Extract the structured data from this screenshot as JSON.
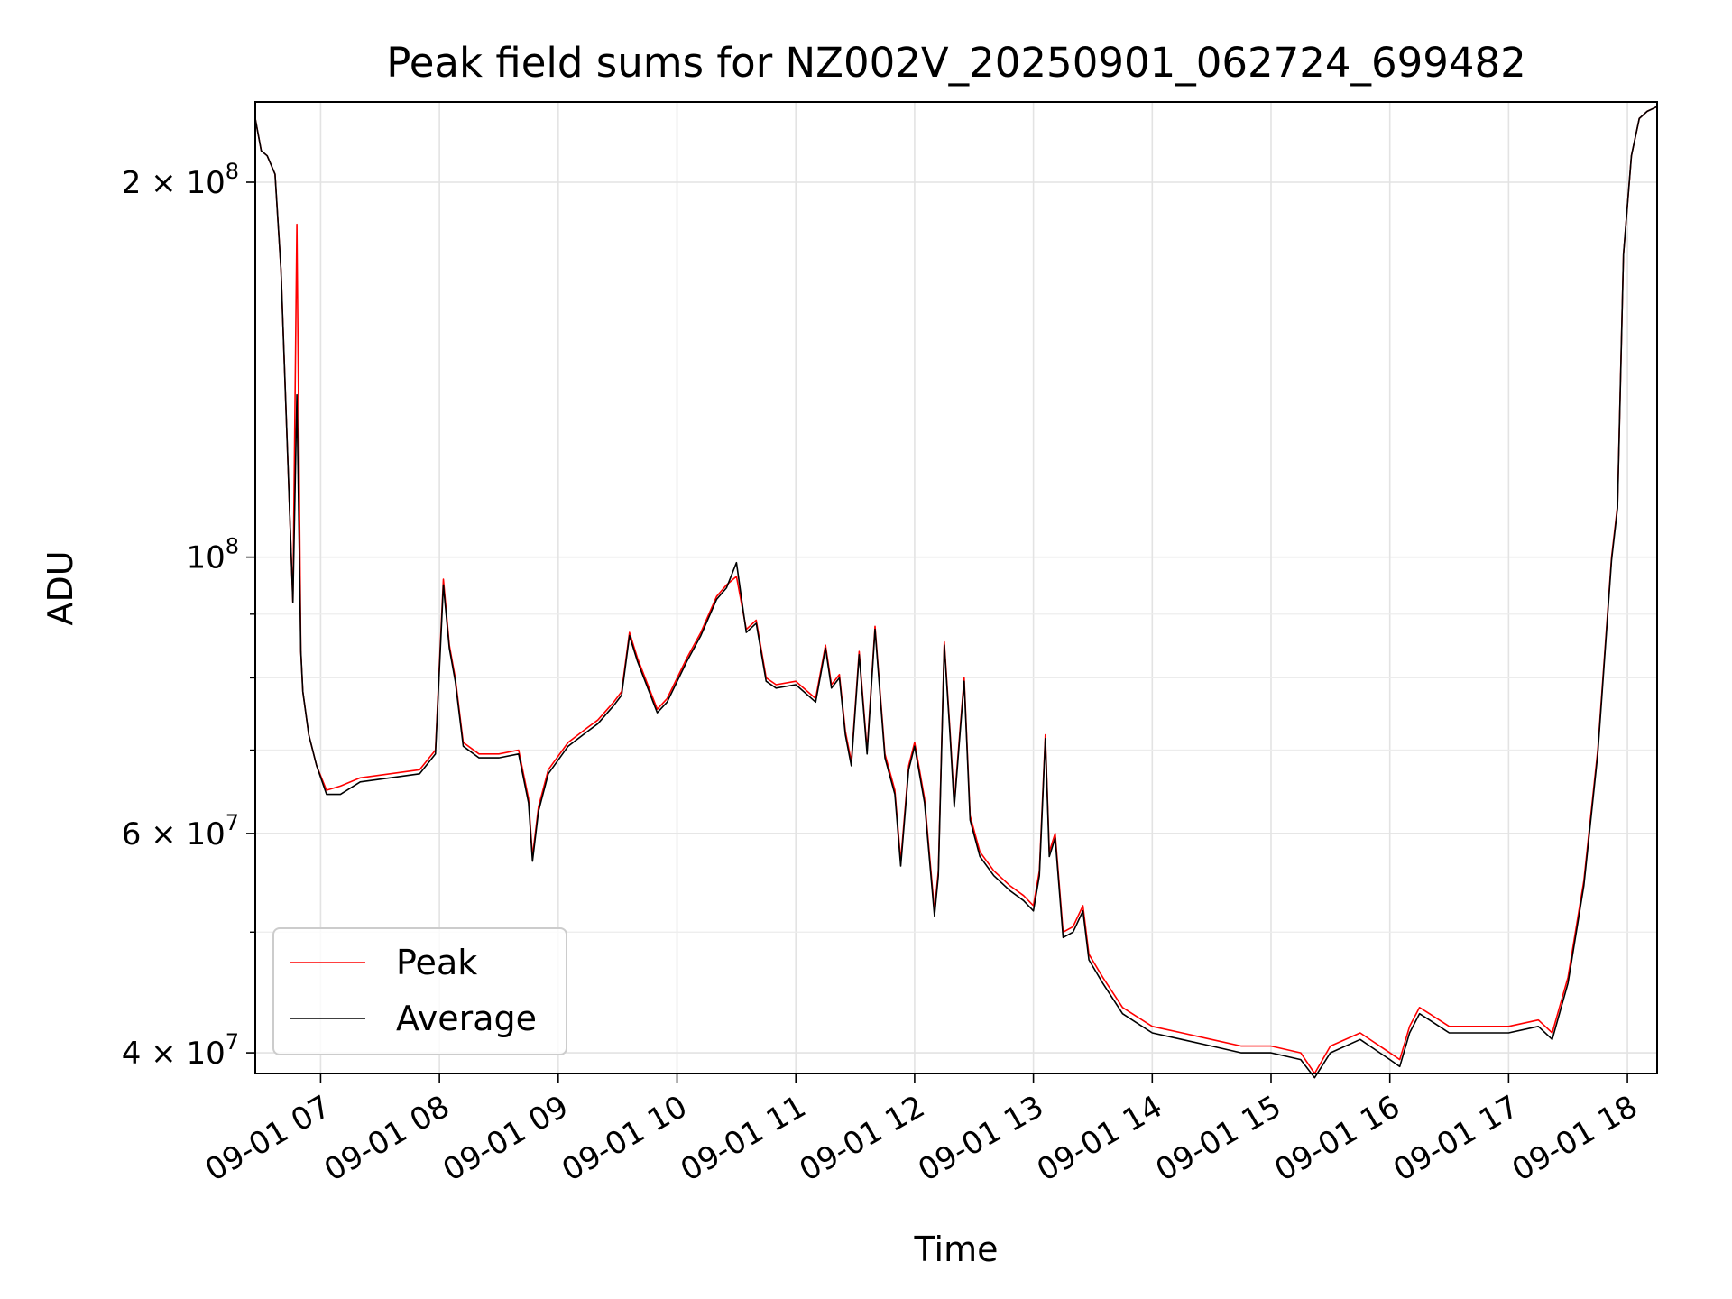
{
  "chart_data": {
    "type": "line",
    "title": "Peak field sums for NZ002V_20250901_062724_699482",
    "xlabel": "Time",
    "ylabel": "ADU",
    "yscale": "log",
    "xlim": [
      "2025-09-01 06:27",
      "2025-09-01 18:15"
    ],
    "ylim": [
      38500000,
      232000000
    ],
    "grid": true,
    "legend_position": "lower-left",
    "x_ticks": [
      "09-01 07",
      "09-01 08",
      "09-01 09",
      "09-01 10",
      "09-01 11",
      "09-01 12",
      "09-01 13",
      "09-01 14",
      "09-01 15",
      "09-01 16",
      "09-01 17",
      "09-01 18"
    ],
    "y_ticks": [
      {
        "value": 40000000,
        "mantissa": "4",
        "exponent": "7"
      },
      {
        "value": 60000000,
        "mantissa": "6",
        "exponent": "7"
      },
      {
        "value": 100000000,
        "mantissa": "",
        "exponent": "8"
      },
      {
        "value": 200000000,
        "mantissa": "2",
        "exponent": "8"
      }
    ],
    "y_minor_ticks": [
      50000000,
      70000000,
      80000000,
      90000000
    ],
    "series": [
      {
        "name": "Peak",
        "color": "#ff0000",
        "x": [
          "2025-09-01 06:27",
          "2025-09-01 06:30",
          "2025-09-01 06:33",
          "2025-09-01 06:37",
          "2025-09-01 06:40",
          "2025-09-01 06:43",
          "2025-09-01 06:46",
          "2025-09-01 06:48",
          "2025-09-01 06:50",
          "2025-09-01 06:51",
          "2025-09-01 06:54",
          "2025-09-01 06:58",
          "2025-09-01 07:03",
          "2025-09-01 07:10",
          "2025-09-01 07:20",
          "2025-09-01 07:35",
          "2025-09-01 07:50",
          "2025-09-01 07:58",
          "2025-09-01 08:02",
          "2025-09-01 08:05",
          "2025-09-01 08:08",
          "2025-09-01 08:12",
          "2025-09-01 08:20",
          "2025-09-01 08:30",
          "2025-09-01 08:40",
          "2025-09-01 08:45",
          "2025-09-01 08:47",
          "2025-09-01 08:50",
          "2025-09-01 08:55",
          "2025-09-01 09:05",
          "2025-09-01 09:15",
          "2025-09-01 09:20",
          "2025-09-01 09:28",
          "2025-09-01 09:32",
          "2025-09-01 09:36",
          "2025-09-01 09:40",
          "2025-09-01 09:50",
          "2025-09-01 09:55",
          "2025-09-01 10:05",
          "2025-09-01 10:12",
          "2025-09-01 10:20",
          "2025-09-01 10:25",
          "2025-09-01 10:30",
          "2025-09-01 10:35",
          "2025-09-01 10:40",
          "2025-09-01 10:45",
          "2025-09-01 10:50",
          "2025-09-01 11:00",
          "2025-09-01 11:10",
          "2025-09-01 11:15",
          "2025-09-01 11:18",
          "2025-09-01 11:22",
          "2025-09-01 11:25",
          "2025-09-01 11:28",
          "2025-09-01 11:32",
          "2025-09-01 11:36",
          "2025-09-01 11:40",
          "2025-09-01 11:45",
          "2025-09-01 11:50",
          "2025-09-01 11:53",
          "2025-09-01 11:57",
          "2025-09-01 12:00",
          "2025-09-01 12:05",
          "2025-09-01 12:10",
          "2025-09-01 12:12",
          "2025-09-01 12:15",
          "2025-09-01 12:18",
          "2025-09-01 12:20",
          "2025-09-01 12:25",
          "2025-09-01 12:28",
          "2025-09-01 12:33",
          "2025-09-01 12:40",
          "2025-09-01 12:48",
          "2025-09-01 12:55",
          "2025-09-01 13:00",
          "2025-09-01 13:03",
          "2025-09-01 13:06",
          "2025-09-01 13:08",
          "2025-09-01 13:11",
          "2025-09-01 13:15",
          "2025-09-01 13:20",
          "2025-09-01 13:25",
          "2025-09-01 13:28",
          "2025-09-01 13:35",
          "2025-09-01 13:45",
          "2025-09-01 14:00",
          "2025-09-01 14:15",
          "2025-09-01 14:30",
          "2025-09-01 14:45",
          "2025-09-01 15:00",
          "2025-09-01 15:15",
          "2025-09-01 15:22",
          "2025-09-01 15:30",
          "2025-09-01 15:45",
          "2025-09-01 16:00",
          "2025-09-01 16:05",
          "2025-09-01 16:10",
          "2025-09-01 16:15",
          "2025-09-01 16:20",
          "2025-09-01 16:30",
          "2025-09-01 16:45",
          "2025-09-01 17:00",
          "2025-09-01 17:15",
          "2025-09-01 17:22",
          "2025-09-01 17:30",
          "2025-09-01 17:38",
          "2025-09-01 17:45",
          "2025-09-01 17:52",
          "2025-09-01 17:55",
          "2025-09-01 17:58",
          "2025-09-01 18:02",
          "2025-09-01 18:06",
          "2025-09-01 18:10",
          "2025-09-01 18:15"
        ],
        "y": [
          225000000,
          212000000,
          210000000,
          203000000,
          170000000,
          125000000,
          92000000,
          185000000,
          84000000,
          78000000,
          72000000,
          68000000,
          65000000,
          65500000,
          66500000,
          67000000,
          67500000,
          70000000,
          96000000,
          85000000,
          80000000,
          71000000,
          69500000,
          69500000,
          70000000,
          64000000,
          57500000,
          63000000,
          67500000,
          71000000,
          73000000,
          74000000,
          76500000,
          78000000,
          87000000,
          83000000,
          75500000,
          77000000,
          83000000,
          87000000,
          93000000,
          95000000,
          96500000,
          87500000,
          89000000,
          80000000,
          79000000,
          79500000,
          77000000,
          85000000,
          79000000,
          80500000,
          72500000,
          68500000,
          84000000,
          70000000,
          88000000,
          69500000,
          65000000,
          57000000,
          68000000,
          71000000,
          64000000,
          52000000,
          56000000,
          85500000,
          72000000,
          63500000,
          80000000,
          62000000,
          58000000,
          56000000,
          54500000,
          53500000,
          52500000,
          56000000,
          72000000,
          58000000,
          60000000,
          50000000,
          50500000,
          52500000,
          48000000,
          46000000,
          43500000,
          42000000,
          41500000,
          41000000,
          40500000,
          40500000,
          40000000,
          38500000,
          40500000,
          41500000,
          40000000,
          39500000,
          42000000,
          43500000,
          43000000,
          42000000,
          42000000,
          42000000,
          42500000,
          41500000,
          46000000,
          55000000,
          70000000,
          100000000,
          110000000,
          175000000,
          210000000,
          225000000,
          228000000,
          230000000
        ]
      },
      {
        "name": "Average",
        "color": "#000000",
        "x": [
          "2025-09-01 06:27",
          "2025-09-01 06:30",
          "2025-09-01 06:33",
          "2025-09-01 06:37",
          "2025-09-01 06:40",
          "2025-09-01 06:43",
          "2025-09-01 06:46",
          "2025-09-01 06:48",
          "2025-09-01 06:50",
          "2025-09-01 06:51",
          "2025-09-01 06:54",
          "2025-09-01 06:58",
          "2025-09-01 07:03",
          "2025-09-01 07:10",
          "2025-09-01 07:20",
          "2025-09-01 07:35",
          "2025-09-01 07:50",
          "2025-09-01 07:58",
          "2025-09-01 08:02",
          "2025-09-01 08:05",
          "2025-09-01 08:08",
          "2025-09-01 08:12",
          "2025-09-01 08:20",
          "2025-09-01 08:30",
          "2025-09-01 08:40",
          "2025-09-01 08:45",
          "2025-09-01 08:47",
          "2025-09-01 08:50",
          "2025-09-01 08:55",
          "2025-09-01 09:05",
          "2025-09-01 09:15",
          "2025-09-01 09:20",
          "2025-09-01 09:28",
          "2025-09-01 09:32",
          "2025-09-01 09:36",
          "2025-09-01 09:40",
          "2025-09-01 09:50",
          "2025-09-01 09:55",
          "2025-09-01 10:05",
          "2025-09-01 10:12",
          "2025-09-01 10:20",
          "2025-09-01 10:25",
          "2025-09-01 10:30",
          "2025-09-01 10:35",
          "2025-09-01 10:40",
          "2025-09-01 10:45",
          "2025-09-01 10:50",
          "2025-09-01 11:00",
          "2025-09-01 11:10",
          "2025-09-01 11:15",
          "2025-09-01 11:18",
          "2025-09-01 11:22",
          "2025-09-01 11:25",
          "2025-09-01 11:28",
          "2025-09-01 11:32",
          "2025-09-01 11:36",
          "2025-09-01 11:40",
          "2025-09-01 11:45",
          "2025-09-01 11:50",
          "2025-09-01 11:53",
          "2025-09-01 11:57",
          "2025-09-01 12:00",
          "2025-09-01 12:05",
          "2025-09-01 12:10",
          "2025-09-01 12:12",
          "2025-09-01 12:15",
          "2025-09-01 12:18",
          "2025-09-01 12:20",
          "2025-09-01 12:25",
          "2025-09-01 12:28",
          "2025-09-01 12:33",
          "2025-09-01 12:40",
          "2025-09-01 12:48",
          "2025-09-01 12:55",
          "2025-09-01 13:00",
          "2025-09-01 13:03",
          "2025-09-01 13:06",
          "2025-09-01 13:08",
          "2025-09-01 13:11",
          "2025-09-01 13:15",
          "2025-09-01 13:20",
          "2025-09-01 13:25",
          "2025-09-01 13:28",
          "2025-09-01 13:35",
          "2025-09-01 13:45",
          "2025-09-01 14:00",
          "2025-09-01 14:15",
          "2025-09-01 14:30",
          "2025-09-01 14:45",
          "2025-09-01 15:00",
          "2025-09-01 15:15",
          "2025-09-01 15:22",
          "2025-09-01 15:30",
          "2025-09-01 15:45",
          "2025-09-01 16:00",
          "2025-09-01 16:05",
          "2025-09-01 16:10",
          "2025-09-01 16:15",
          "2025-09-01 16:20",
          "2025-09-01 16:30",
          "2025-09-01 16:45",
          "2025-09-01 17:00",
          "2025-09-01 17:15",
          "2025-09-01 17:22",
          "2025-09-01 17:30",
          "2025-09-01 17:38",
          "2025-09-01 17:45",
          "2025-09-01 17:52",
          "2025-09-01 17:55",
          "2025-09-01 17:58",
          "2025-09-01 18:02",
          "2025-09-01 18:06",
          "2025-09-01 18:10",
          "2025-09-01 18:15"
        ],
        "y": [
          225000000,
          212000000,
          210000000,
          203000000,
          170000000,
          125000000,
          92000000,
          135000000,
          84000000,
          78000000,
          72000000,
          68000000,
          64500000,
          64500000,
          66000000,
          66500000,
          67000000,
          69500000,
          95000000,
          84500000,
          79500000,
          70500000,
          69000000,
          69000000,
          69500000,
          63500000,
          57000000,
          62500000,
          67000000,
          70500000,
          72500000,
          73500000,
          76000000,
          77500000,
          86500000,
          82500000,
          75000000,
          76500000,
          82500000,
          86500000,
          92500000,
          94500000,
          99000000,
          87000000,
          88500000,
          79500000,
          78500000,
          79000000,
          76500000,
          84500000,
          78500000,
          80000000,
          72000000,
          68000000,
          83500000,
          69500000,
          87500000,
          69000000,
          64500000,
          56500000,
          67500000,
          70500000,
          63500000,
          51500000,
          55500000,
          85000000,
          71500000,
          63000000,
          79500000,
          61500000,
          57500000,
          55500000,
          54000000,
          53000000,
          52000000,
          55500000,
          71500000,
          57500000,
          59500000,
          49500000,
          50000000,
          52000000,
          47500000,
          45500000,
          43000000,
          41500000,
          41000000,
          40500000,
          40000000,
          40000000,
          39500000,
          38200000,
          40000000,
          41000000,
          39500000,
          39000000,
          41500000,
          43000000,
          42500000,
          41500000,
          41500000,
          41500000,
          42000000,
          41000000,
          45500000,
          54500000,
          69500000,
          99500000,
          109500000,
          175000000,
          210000000,
          225000000,
          228000000,
          230000000
        ]
      }
    ]
  }
}
